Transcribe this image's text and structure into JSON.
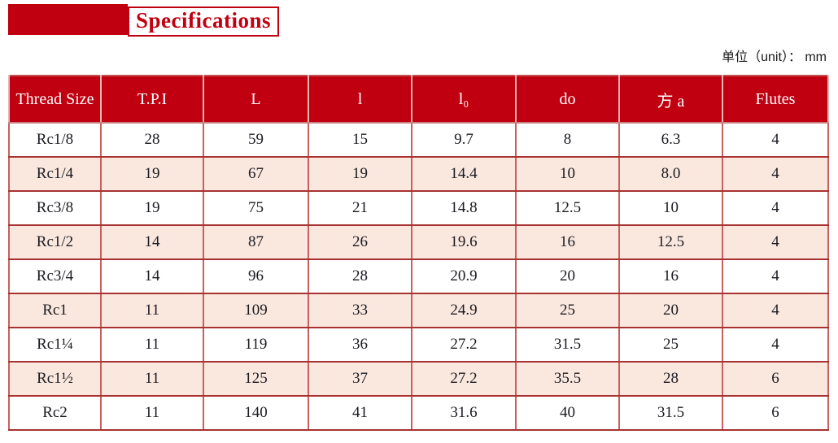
{
  "header": {
    "title": "Specifications",
    "unit_label": "单位（unit）： mm"
  },
  "colors": {
    "banner_red": "#c00010",
    "header_bg": "#c00010",
    "header_text": "#ffffff",
    "alt_row_bg": "#fae8df",
    "grid_vertical": "#c86060",
    "grid_horizontal": "#a83232",
    "body_text": "#1b1b22"
  },
  "table": {
    "headers": [
      "Thread Size",
      "T.P.I",
      "L",
      "l",
      "l₀",
      "do",
      "方 a",
      "Flutes"
    ],
    "rows": [
      [
        "Rc1/8",
        "28",
        "59",
        "15",
        "9.7",
        "8",
        "6.3",
        "4"
      ],
      [
        "Rc1/4",
        "19",
        "67",
        "19",
        "14.4",
        "10",
        "8.0",
        "4"
      ],
      [
        "Rc3/8",
        "19",
        "75",
        "21",
        "14.8",
        "12.5",
        "10",
        "4"
      ],
      [
        "Rc1/2",
        "14",
        "87",
        "26",
        "19.6",
        "16",
        "12.5",
        "4"
      ],
      [
        "Rc3/4",
        "14",
        "96",
        "28",
        "20.9",
        "20",
        "16",
        "4"
      ],
      [
        "Rc1",
        "11",
        "109",
        "33",
        "24.9",
        "25",
        "20",
        "4"
      ],
      [
        "Rc1¼",
        "11",
        "119",
        "36",
        "27.2",
        "31.5",
        "25",
        "4"
      ],
      [
        "Rc1½",
        "11",
        "125",
        "37",
        "27.2",
        "35.5",
        "28",
        "6"
      ],
      [
        "Rc2",
        "11",
        "140",
        "41",
        "31.6",
        "40",
        "31.5",
        "6"
      ]
    ]
  }
}
